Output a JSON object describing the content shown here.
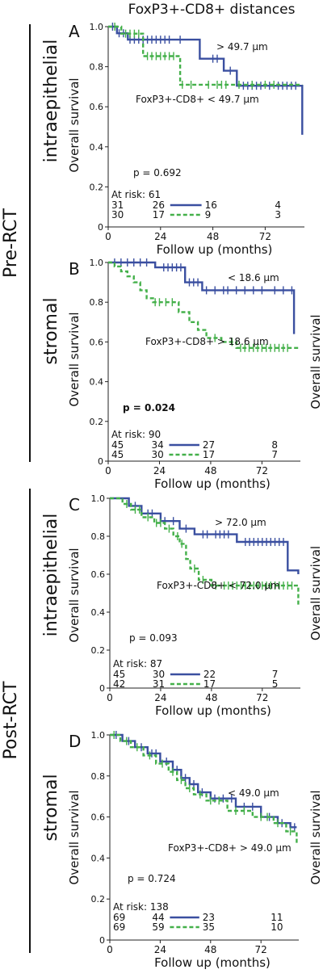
{
  "header": "FoxP3+-CD8+ distances",
  "side_labels": {
    "pre": "Pre-RCT",
    "post": "Post-RCT",
    "intraepithelial": "intraepithelial",
    "stromal": "stromal"
  },
  "axis": {
    "xlabel": "Follow up (months)",
    "ylabel": "Overall survival"
  },
  "colors": {
    "blue": "#3a4fa0",
    "green": "#44b04a"
  },
  "chart_data": [
    {
      "type": "line",
      "panel": "A",
      "xlim": [
        0,
        90
      ],
      "ylim": [
        0,
        1.0
      ],
      "xticks": [
        "0",
        "24",
        "48",
        "72"
      ],
      "yticks": [
        "0",
        "0.2",
        "0.4",
        "0.6",
        "0.8",
        "1.0"
      ],
      "label_blue": "> 49.7 µm",
      "label_green": "FoxP3+-CD8+ < 49.7 µm",
      "p_value": "p = 0.692",
      "p_bold": false,
      "at_risk_title": "At risk: 61",
      "at_risk_rows": [
        [
          "31",
          "26",
          "16",
          "4"
        ],
        [
          "30",
          "17",
          "9",
          "3"
        ]
      ],
      "series": [
        {
          "color": "blue",
          "dash": false,
          "x": [
            0,
            4,
            4,
            9,
            9,
            30,
            30,
            42,
            42,
            53,
            53,
            59,
            59,
            89,
            89
          ],
          "y": [
            1.0,
            1.0,
            0.967,
            0.967,
            0.935,
            0.935,
            0.935,
            0.935,
            0.84,
            0.84,
            0.78,
            0.78,
            0.705,
            0.705,
            0.46
          ],
          "censor_x": [
            2,
            5,
            7,
            10,
            12,
            14,
            16,
            18,
            20,
            22,
            24,
            26,
            28,
            33,
            48,
            50,
            56,
            62,
            64,
            66,
            68,
            70,
            74,
            78,
            80,
            82,
            84,
            86
          ],
          "censor_y": [
            1.0,
            0.967,
            0.967,
            0.935,
            0.935,
            0.935,
            0.935,
            0.935,
            0.935,
            0.935,
            0.935,
            0.935,
            0.935,
            0.935,
            0.84,
            0.84,
            0.78,
            0.705,
            0.705,
            0.705,
            0.705,
            0.705,
            0.705,
            0.705,
            0.705,
            0.705,
            0.705,
            0.705
          ]
        },
        {
          "color": "green",
          "dash": true,
          "x": [
            0,
            6,
            6,
            16,
            16,
            33,
            33,
            89
          ],
          "y": [
            1.0,
            1.0,
            0.965,
            0.965,
            0.853,
            0.853,
            0.71,
            0.71
          ],
          "censor_x": [
            3,
            8,
            10,
            12,
            14,
            18,
            20,
            22,
            24,
            26,
            28,
            30,
            34,
            38,
            46,
            50,
            52,
            54,
            60,
            66,
            72,
            76
          ],
          "censor_y": [
            1.0,
            0.965,
            0.965,
            0.965,
            0.965,
            0.853,
            0.853,
            0.853,
            0.853,
            0.853,
            0.853,
            0.853,
            0.71,
            0.71,
            0.71,
            0.71,
            0.71,
            0.71,
            0.71,
            0.71,
            0.71,
            0.71
          ]
        }
      ]
    },
    {
      "type": "line",
      "panel": "B",
      "xlim": [
        0,
        90
      ],
      "ylim": [
        0,
        1.0
      ],
      "xticks": [
        "0",
        "24",
        "48",
        "72"
      ],
      "yticks": [
        "0",
        "0.2",
        "0.4",
        "0.6",
        "0.8",
        "1.0"
      ],
      "label_blue": "< 18.6 µm",
      "label_green": "FoxP3+-CD8+ > 18.6 µm",
      "p_value": "p = 0.024",
      "p_bold": true,
      "at_risk_title": "At risk: 90",
      "at_risk_rows": [
        [
          "45",
          "34",
          "27",
          "8"
        ],
        [
          "45",
          "30",
          "17",
          "7"
        ]
      ],
      "series": [
        {
          "color": "blue",
          "dash": false,
          "x": [
            0,
            22,
            22,
            36,
            36,
            44,
            44,
            87,
            87
          ],
          "y": [
            1.0,
            1.0,
            0.975,
            0.975,
            0.9,
            0.9,
            0.86,
            0.86,
            0.64
          ],
          "censor_x": [
            3,
            6,
            9,
            12,
            15,
            18,
            26,
            28,
            30,
            32,
            34,
            38,
            40,
            42,
            46,
            50,
            54,
            56,
            60,
            64,
            68,
            72,
            78,
            82,
            86
          ],
          "censor_y": [
            1.0,
            1.0,
            1.0,
            1.0,
            1.0,
            1.0,
            0.975,
            0.975,
            0.975,
            0.975,
            0.975,
            0.9,
            0.9,
            0.9,
            0.86,
            0.86,
            0.86,
            0.86,
            0.86,
            0.86,
            0.86,
            0.86,
            0.86,
            0.86,
            0.86
          ]
        },
        {
          "color": "green",
          "dash": true,
          "x": [
            0,
            3,
            3,
            6,
            6,
            9,
            9,
            12,
            12,
            15,
            15,
            18,
            18,
            21,
            21,
            33,
            33,
            38,
            38,
            42,
            42,
            46,
            46,
            53,
            53,
            60,
            60,
            89
          ],
          "y": [
            1.0,
            1.0,
            0.98,
            0.98,
            0.955,
            0.955,
            0.93,
            0.93,
            0.9,
            0.9,
            0.86,
            0.86,
            0.82,
            0.82,
            0.8,
            0.8,
            0.75,
            0.75,
            0.7,
            0.7,
            0.66,
            0.66,
            0.62,
            0.62,
            0.6,
            0.6,
            0.57,
            0.57
          ],
          "censor_x": [
            22,
            24,
            27,
            30,
            50,
            58,
            62,
            64,
            66,
            68,
            70,
            72,
            74,
            76,
            78,
            80,
            82,
            84
          ],
          "censor_y": [
            0.8,
            0.8,
            0.8,
            0.8,
            0.62,
            0.6,
            0.57,
            0.57,
            0.57,
            0.57,
            0.57,
            0.57,
            0.57,
            0.57,
            0.57,
            0.57,
            0.57,
            0.57
          ]
        }
      ]
    },
    {
      "type": "line",
      "panel": "C",
      "xlim": [
        0,
        90
      ],
      "ylim": [
        0,
        1.0
      ],
      "xticks": [
        "0",
        "24",
        "48",
        "72"
      ],
      "yticks": [
        "0",
        "0.2",
        "0.4",
        "0.6",
        "0.8",
        "1.0"
      ],
      "label_blue": "> 72.0 µm",
      "label_green": "FoxP3+-CD8+ < 72.0 µm",
      "p_value": "p = 0.093",
      "p_bold": false,
      "at_risk_title": "At risk: 87",
      "at_risk_rows": [
        [
          "45",
          "30",
          "22",
          "7"
        ],
        [
          "42",
          "31",
          "17",
          "5"
        ]
      ],
      "series": [
        {
          "color": "blue",
          "dash": false,
          "x": [
            0,
            9,
            9,
            15,
            15,
            24,
            24,
            33,
            33,
            40,
            40,
            60,
            60,
            84,
            84,
            89,
            89
          ],
          "y": [
            1.0,
            1.0,
            0.96,
            0.96,
            0.92,
            0.92,
            0.88,
            0.88,
            0.84,
            0.84,
            0.81,
            0.81,
            0.77,
            0.77,
            0.62,
            0.62,
            0.6
          ],
          "censor_x": [
            12,
            18,
            20,
            26,
            30,
            36,
            44,
            46,
            50,
            52,
            54,
            56,
            64,
            66,
            68,
            70,
            72,
            74,
            76,
            78,
            80,
            82
          ],
          "censor_y": [
            0.96,
            0.92,
            0.92,
            0.88,
            0.88,
            0.84,
            0.81,
            0.81,
            0.81,
            0.81,
            0.81,
            0.81,
            0.77,
            0.77,
            0.77,
            0.77,
            0.77,
            0.77,
            0.77,
            0.77,
            0.77,
            0.77
          ]
        },
        {
          "color": "green",
          "dash": true,
          "x": [
            0,
            6,
            6,
            10,
            10,
            15,
            15,
            21,
            21,
            26,
            26,
            30,
            30,
            33,
            33,
            36,
            36,
            38,
            38,
            42,
            42,
            48,
            48,
            89,
            89
          ],
          "y": [
            1.0,
            1.0,
            0.97,
            0.97,
            0.94,
            0.94,
            0.9,
            0.9,
            0.87,
            0.87,
            0.84,
            0.84,
            0.8,
            0.8,
            0.76,
            0.76,
            0.68,
            0.68,
            0.63,
            0.63,
            0.57,
            0.57,
            0.54,
            0.54,
            0.43
          ],
          "censor_x": [
            8,
            12,
            14,
            18,
            22,
            24,
            28,
            32,
            34,
            40,
            44,
            50,
            54,
            56,
            58,
            60,
            62,
            64,
            66,
            68,
            70,
            72,
            74,
            76,
            78,
            80,
            82,
            84,
            86
          ],
          "censor_y": [
            0.97,
            0.94,
            0.94,
            0.9,
            0.87,
            0.87,
            0.84,
            0.8,
            0.76,
            0.63,
            0.57,
            0.54,
            0.54,
            0.54,
            0.54,
            0.54,
            0.54,
            0.54,
            0.54,
            0.54,
            0.54,
            0.54,
            0.54,
            0.54,
            0.54,
            0.54,
            0.54,
            0.54,
            0.54
          ]
        }
      ]
    },
    {
      "type": "line",
      "panel": "D",
      "xlim": [
        0,
        90
      ],
      "ylim": [
        0,
        1.0
      ],
      "xticks": [
        "0",
        "24",
        "48",
        "72"
      ],
      "yticks": [
        "0",
        "0.2",
        "0.4",
        "0.6",
        "0.8",
        "1.0"
      ],
      "label_blue": "< 49.0 µm",
      "label_green": "FoxP3+-CD8+ > 49.0 µm",
      "p_value": "p = 0.724",
      "p_bold": false,
      "at_risk_title": "At risk: 138",
      "at_risk_rows": [
        [
          "69",
          "44",
          "23",
          "11"
        ],
        [
          "69",
          "59",
          "35",
          "10"
        ]
      ],
      "series": [
        {
          "color": "blue",
          "dash": false,
          "x": [
            0,
            6,
            6,
            12,
            12,
            18,
            18,
            24,
            24,
            30,
            30,
            34,
            34,
            38,
            38,
            42,
            42,
            48,
            48,
            60,
            60,
            72,
            72,
            80,
            80,
            86,
            86,
            89
          ],
          "y": [
            1.0,
            1.0,
            0.97,
            0.97,
            0.94,
            0.94,
            0.91,
            0.91,
            0.87,
            0.87,
            0.83,
            0.83,
            0.79,
            0.79,
            0.76,
            0.76,
            0.72,
            0.72,
            0.69,
            0.69,
            0.65,
            0.65,
            0.6,
            0.6,
            0.57,
            0.57,
            0.55,
            0.55
          ],
          "censor_x": [
            3,
            9,
            15,
            20,
            22,
            27,
            32,
            36,
            40,
            44,
            50,
            54,
            58,
            64,
            68,
            76,
            82,
            88
          ],
          "censor_y": [
            1.0,
            0.97,
            0.94,
            0.91,
            0.91,
            0.87,
            0.83,
            0.79,
            0.76,
            0.72,
            0.69,
            0.69,
            0.69,
            0.65,
            0.65,
            0.6,
            0.57,
            0.55
          ]
        },
        {
          "color": "green",
          "dash": true,
          "x": [
            0,
            5,
            5,
            10,
            10,
            16,
            16,
            22,
            22,
            28,
            28,
            32,
            32,
            36,
            36,
            40,
            40,
            46,
            46,
            56,
            56,
            68,
            68,
            78,
            78,
            84,
            84,
            89,
            89
          ],
          "y": [
            1.0,
            1.0,
            0.97,
            0.97,
            0.94,
            0.94,
            0.9,
            0.9,
            0.86,
            0.86,
            0.82,
            0.82,
            0.78,
            0.78,
            0.74,
            0.74,
            0.71,
            0.71,
            0.68,
            0.68,
            0.63,
            0.63,
            0.6,
            0.6,
            0.57,
            0.57,
            0.53,
            0.53,
            0.47
          ],
          "censor_x": [
            2,
            8,
            13,
            19,
            25,
            30,
            34,
            38,
            43,
            48,
            52,
            60,
            64,
            72,
            75,
            80,
            86
          ],
          "censor_y": [
            1.0,
            0.97,
            0.94,
            0.9,
            0.86,
            0.82,
            0.78,
            0.74,
            0.71,
            0.68,
            0.68,
            0.63,
            0.63,
            0.6,
            0.6,
            0.57,
            0.53
          ]
        }
      ]
    }
  ]
}
